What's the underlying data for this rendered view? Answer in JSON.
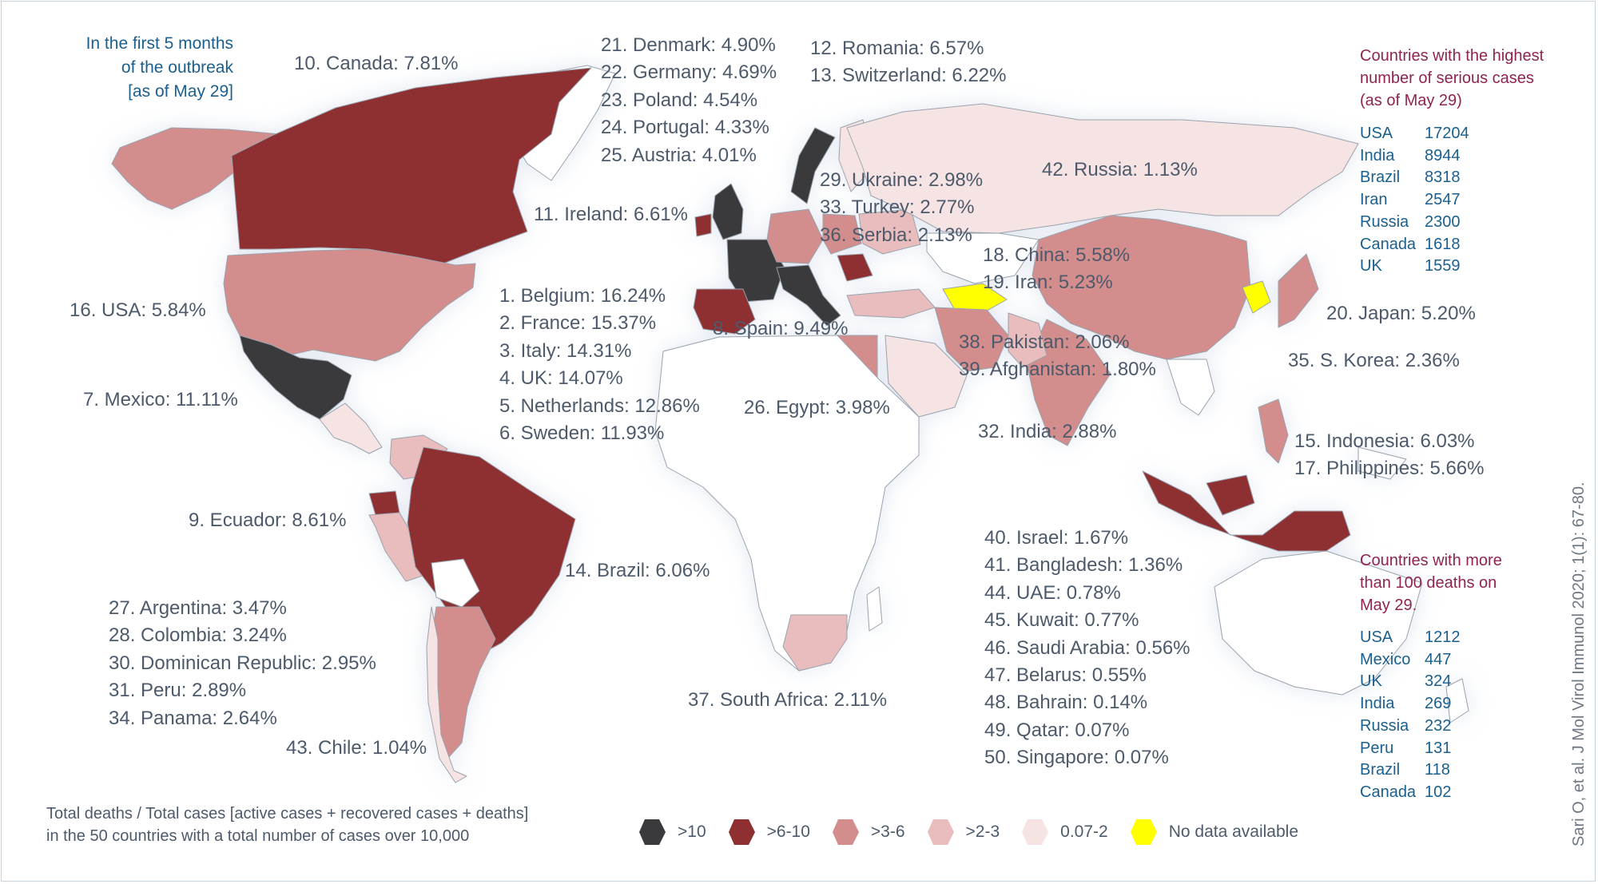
{
  "colors": {
    "over10": "#3a3a3c",
    "b6to10": "#8e2f32",
    "b3to6": "#d48d8d",
    "b2to3": "#e9bdbd",
    "b0to2": "#f6e4e4",
    "nodata": "#ffff00",
    "other": "#ffffff",
    "border": "#9aa3ad"
  },
  "title": [
    "In the first 5 months",
    "of the outbreak",
    "[as of May 29]"
  ],
  "labels": {
    "canada": "10. Canada: 7.81%",
    "usa": "16. USA: 5.84%",
    "mexico": "7. Mexico: 11.11%",
    "ecuador": "9. Ecuador: 8.61%",
    "brazil": "14. Brazil: 6.06%",
    "ireland": "11. Ireland: 6.61%",
    "spain": "8. Spain: 9.49%",
    "egypt": "26. Egypt: 3.98%",
    "south_africa": "37. South Africa: 2.11%",
    "russia": "42. Russia: 1.13%",
    "japan": "20. Japan: 5.20%",
    "skorea": "35. S. Korea: 2.36%",
    "india": "32. India: 2.88%",
    "chile": "43. Chile: 1.04%"
  },
  "groups": {
    "denmark": [
      "21. Denmark: 4.90%",
      "22. Germany: 4.69%",
      "23. Poland: 4.54%",
      "24. Portugal: 4.33%",
      "25. Austria: 4.01%"
    ],
    "romania": [
      "12. Romania: 6.57%",
      "13. Switzerland: 6.22%"
    ],
    "ukraine": [
      "29. Ukraine: 2.98%",
      "33. Turkey: 2.77%",
      "36. Serbia: 2.13%"
    ],
    "china": [
      "18. China: 5.58%",
      "19. Iran: 5.23%"
    ],
    "pakistan": [
      "38. Pakistan: 2.06%",
      "39. Afghanistan: 1.80%"
    ],
    "europe": [
      "1. Belgium: 16.24%",
      "2. France:  15.37%",
      "3. Italy: 14.31%",
      "4. UK:  14.07%",
      "5. Netherlands: 12.86%",
      "6. Sweden: 11.93%"
    ],
    "indonesia": [
      "15. Indonesia: 6.03%",
      "17. Philippines: 5.66%"
    ],
    "southam": [
      "27. Argentina: 3.47%",
      "28. Colombia: 3.24%",
      "30. Dominican Republic: 2.95%",
      "31. Peru: 2.89%",
      "34. Panama: 2.64%"
    ],
    "mideast": [
      "40. Israel: 1.67%",
      "41. Bangladesh: 1.36%",
      "44. UAE: 0.78%",
      "45. Kuwait: 0.77%",
      "46. Saudi Arabia: 0.56%",
      "47. Belarus: 0.55%",
      "48. Bahrain: 0.14%",
      "49. Qatar: 0.07%",
      "50. Singapore: 0.07%"
    ]
  },
  "serious": {
    "title": [
      "Countries with the highest",
      "number of serious cases",
      "(as of May 29)"
    ],
    "rows": [
      {
        "country": "USA",
        "value": "17204"
      },
      {
        "country": "India",
        "value": "8944"
      },
      {
        "country": "Brazil",
        "value": "8318"
      },
      {
        "country": "Iran",
        "value": "2547"
      },
      {
        "country": "Russia",
        "value": "2300"
      },
      {
        "country": "Canada",
        "value": "1618"
      },
      {
        "country": "UK",
        "value": "1559"
      }
    ]
  },
  "deaths": {
    "title": [
      "Countries with more",
      "than 100 deaths on",
      "May 29."
    ],
    "rows": [
      {
        "country": "USA",
        "value": "1212"
      },
      {
        "country": "Mexico",
        "value": "447"
      },
      {
        "country": "UK",
        "value": "324"
      },
      {
        "country": "India",
        "value": "269"
      },
      {
        "country": "Russia",
        "value": "232"
      },
      {
        "country": "Peru",
        "value": "131"
      },
      {
        "country": "Brazil",
        "value": "118"
      },
      {
        "country": "Canada",
        "value": "102"
      }
    ]
  },
  "footnote": [
    "Total deaths / Total cases [active cases + recovered cases + deaths]",
    "in the 50 countries with a total number of cases over 10,000"
  ],
  "legend": [
    {
      "label": ">10",
      "color": "#3a3a3c"
    },
    {
      "label": ">6-10",
      "color": "#8e2f32"
    },
    {
      "label": ">3-6",
      "color": "#d48d8d"
    },
    {
      "label": ">2-3",
      "color": "#e9bdbd"
    },
    {
      "label": "0.07-2",
      "color": "#f6e4e4"
    },
    {
      "label": "No data available",
      "color": "#ffff00"
    }
  ],
  "citation": "Sari O, et al. J Mol Virol Immunol 2020; 1(1): 67-80."
}
